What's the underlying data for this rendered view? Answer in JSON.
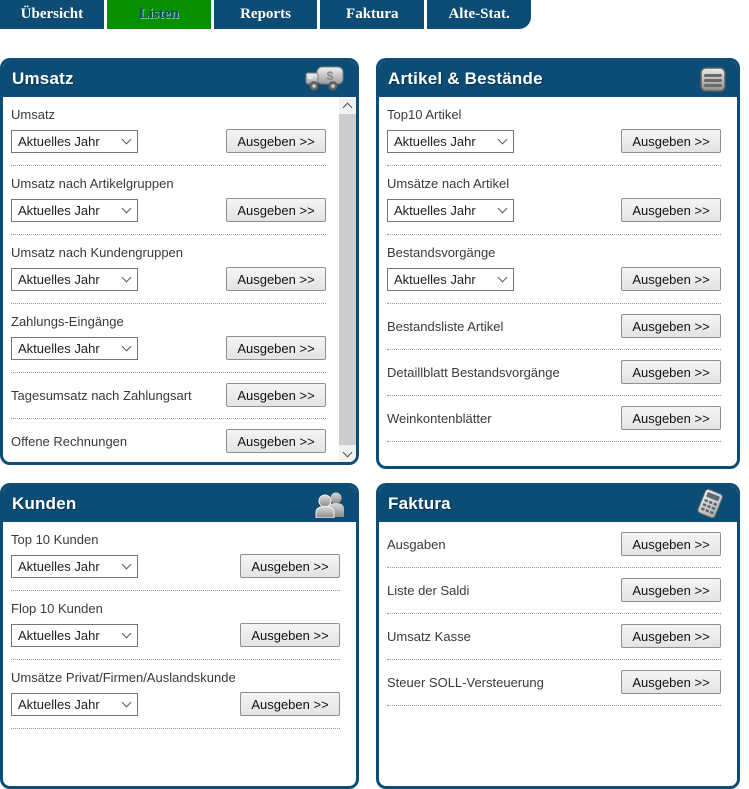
{
  "tab_bar": {
    "tabs": [
      {
        "label": "Übersicht",
        "active": false
      },
      {
        "label": "Listen",
        "active": true
      },
      {
        "label": "Reports",
        "active": false
      },
      {
        "label": "Faktura",
        "active": false
      },
      {
        "label": "Alte-Stat.",
        "active": false
      }
    ]
  },
  "colors": {
    "navy": "#0d4d75",
    "active_tab_green": "#089000",
    "separator": "#999999",
    "scroll_track": "#f1f1f1",
    "scroll_thumb": "#cdcdcd"
  },
  "panels": [
    {
      "id": "umsatz",
      "title": "Umsatz",
      "icon": "truck-dollar-icon",
      "scrollbar": true,
      "trailing_separator": false,
      "sections": [
        {
          "label": "Umsatz",
          "select": "Aktuelles Jahr",
          "button": "Ausgeben >>"
        },
        {
          "label": "Umsatz nach Artikelgruppen",
          "select": "Aktuelles Jahr",
          "button": "Ausgeben >>"
        },
        {
          "label": "Umsatz nach Kundengruppen",
          "select": "Aktuelles Jahr",
          "button": "Ausgeben >>"
        },
        {
          "label": "Zahlungs-Eingänge",
          "select": "Aktuelles Jahr",
          "button": "Ausgeben >>"
        },
        {
          "label": "Tagesumsatz nach Zahlungsart",
          "select": null,
          "button": "Ausgeben >>"
        },
        {
          "label": "Offene Rechnungen",
          "select": null,
          "button": "Ausgeben >>"
        }
      ]
    },
    {
      "id": "artikel",
      "title": "Artikel & Bestände",
      "icon": "crate-icon",
      "scrollbar": false,
      "trailing_separator": true,
      "sections": [
        {
          "label": "Top10 Artikel",
          "select": "Aktuelles Jahr",
          "button": "Ausgeben >>"
        },
        {
          "label": "Umsätze nach Artikel",
          "select": "Aktuelles Jahr",
          "button": "Ausgeben >>"
        },
        {
          "label": "Bestandsvorgänge",
          "select": "Aktuelles Jahr",
          "button": "Ausgeben >>"
        },
        {
          "label": "Bestandsliste Artikel",
          "select": null,
          "button": "Ausgeben >>"
        },
        {
          "label": "Detaillblatt Bestandsvorgänge",
          "select": null,
          "button": "Ausgeben >>"
        },
        {
          "label": "Weinkontenblätter",
          "select": null,
          "button": "Ausgeben >>"
        }
      ]
    },
    {
      "id": "kunden",
      "title": "Kunden",
      "icon": "users-icon",
      "scrollbar": false,
      "trailing_separator": true,
      "sections": [
        {
          "label": "Top 10 Kunden",
          "select": "Aktuelles Jahr",
          "button": "Ausgeben >>"
        },
        {
          "label": "Flop 10 Kunden",
          "select": "Aktuelles Jahr",
          "button": "Ausgeben >>"
        },
        {
          "label": "Umsätze Privat/Firmen/Auslandskunde",
          "select": "Aktuelles Jahr",
          "button": "Ausgeben >>"
        }
      ]
    },
    {
      "id": "faktura",
      "title": "Faktura",
      "icon": "calculator-icon",
      "scrollbar": false,
      "trailing_separator": true,
      "sections": [
        {
          "label": "Ausgaben",
          "select": null,
          "button": "Ausgeben >>"
        },
        {
          "label": "Liste der Saldi",
          "select": null,
          "button": "Ausgeben >>"
        },
        {
          "label": "Umsatz Kasse",
          "select": null,
          "button": "Ausgeben >>"
        },
        {
          "label": "Steuer SOLL-Versteuerung",
          "select": null,
          "button": "Ausgeben >>"
        }
      ]
    }
  ]
}
